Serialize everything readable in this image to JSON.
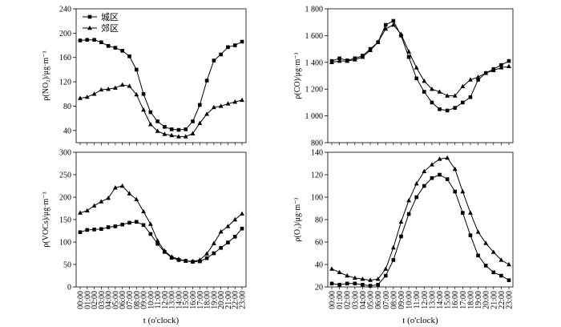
{
  "x_axis_label": "t (o'clock)",
  "chart_data": [
    {
      "type": "line",
      "id": "no2",
      "ylabel": "ρ(NO₂)/μg·m⁻³",
      "ylim": [
        20,
        240
      ],
      "yticks": [
        40,
        80,
        120,
        160,
        200,
        240
      ],
      "ytick_labels": [
        "40",
        "80",
        "120",
        "160",
        "200",
        "240"
      ],
      "x": [
        "00:00",
        "01:00",
        "02:00",
        "03:00",
        "04:00",
        "05:00",
        "06:00",
        "07:00",
        "08:00",
        "09:00",
        "10:00",
        "11:00",
        "12:00",
        "13:00",
        "14:00",
        "15:00",
        "16:00",
        "17:00",
        "18:00",
        "19:00",
        "20:00",
        "21:00",
        "22:00",
        "23:00"
      ],
      "legend_position": "top-left",
      "series": [
        {
          "name": "城区",
          "marker": "square",
          "values": [
            188,
            189,
            189,
            185,
            179,
            176,
            171,
            162,
            140,
            100,
            70,
            55,
            46,
            42,
            41,
            42,
            55,
            82,
            122,
            155,
            165,
            177,
            180,
            186
          ]
        },
        {
          "name": "郊区",
          "marker": "triangle",
          "values": [
            93,
            95,
            100,
            107,
            108,
            110,
            115,
            113,
            99,
            74,
            50,
            39,
            34,
            32,
            30,
            30,
            35,
            52,
            67,
            78,
            80,
            84,
            87,
            90
          ]
        }
      ]
    },
    {
      "type": "line",
      "id": "co",
      "ylabel": "ρ(CO)/μg·m⁻³",
      "ylim": [
        800,
        1800
      ],
      "yticks": [
        800,
        1000,
        1200,
        1400,
        1600,
        1800
      ],
      "ytick_labels": [
        "800",
        "1 000",
        "1 200",
        "1 400",
        "1 600",
        "1 800"
      ],
      "x": [
        "00:00",
        "01:00",
        "02:00",
        "03:00",
        "04:00",
        "05:00",
        "06:00",
        "07:00",
        "08:00",
        "09:00",
        "10:00",
        "11:00",
        "12:00",
        "13:00",
        "14:00",
        "15:00",
        "16:00",
        "17:00",
        "18:00",
        "19:00",
        "20:00",
        "21:00",
        "22:00",
        "23:00"
      ],
      "series": [
        {
          "name": "城区",
          "marker": "square",
          "values": [
            1410,
            1430,
            1415,
            1430,
            1450,
            1500,
            1550,
            1680,
            1710,
            1600,
            1440,
            1280,
            1180,
            1100,
            1050,
            1040,
            1060,
            1100,
            1140,
            1270,
            1320,
            1350,
            1380,
            1410
          ]
        },
        {
          "name": "郊区",
          "marker": "triangle",
          "values": [
            1400,
            1410,
            1410,
            1420,
            1440,
            1490,
            1550,
            1650,
            1680,
            1610,
            1480,
            1360,
            1260,
            1200,
            1180,
            1150,
            1150,
            1220,
            1270,
            1290,
            1320,
            1340,
            1360,
            1370
          ]
        }
      ]
    },
    {
      "type": "line",
      "id": "vocs",
      "ylabel": "ρ(VOCs)/μg·m⁻³",
      "ylim": [
        0,
        300
      ],
      "yticks": [
        0,
        50,
        100,
        150,
        200,
        250,
        300
      ],
      "ytick_labels": [
        "0",
        "50",
        "100",
        "150",
        "200",
        "250",
        "300"
      ],
      "x": [
        "00:00",
        "01:00",
        "02:00",
        "03:00",
        "04:00",
        "05:00",
        "06:00",
        "07:00",
        "08:00",
        "09:00",
        "10:00",
        "11:00",
        "12:00",
        "13:00",
        "14:00",
        "15:00",
        "16:00",
        "17:00",
        "18:00",
        "19:00",
        "20:00",
        "21:00",
        "22:00",
        "23:00"
      ],
      "series": [
        {
          "name": "城区",
          "marker": "square",
          "values": [
            122,
            127,
            128,
            129,
            133,
            135,
            139,
            143,
            145,
            138,
            118,
            96,
            78,
            65,
            60,
            58,
            56,
            57,
            64,
            75,
            87,
            99,
            112,
            130
          ]
        },
        {
          "name": "郊区",
          "marker": "triangle",
          "values": [
            165,
            170,
            181,
            190,
            198,
            221,
            225,
            208,
            195,
            168,
            140,
            103,
            80,
            67,
            62,
            58,
            57,
            60,
            74,
            97,
            123,
            135,
            150,
            163
          ]
        }
      ]
    },
    {
      "type": "line",
      "id": "o3",
      "ylabel": "ρ(O₃)/μg·m⁻³",
      "ylim": [
        20,
        140
      ],
      "yticks": [
        20,
        40,
        60,
        80,
        100,
        120,
        140
      ],
      "ytick_labels": [
        "20",
        "40",
        "60",
        "80",
        "100",
        "120",
        "140"
      ],
      "x": [
        "00:00",
        "01:00",
        "02:00",
        "03:00",
        "04:00",
        "05:00",
        "06:00",
        "07:00",
        "08:00",
        "09:00",
        "10:00",
        "11:00",
        "12:00",
        "13:00",
        "14:00",
        "15:00",
        "16:00",
        "17:00",
        "18:00",
        "19:00",
        "20:00",
        "21:00",
        "22:00",
        "23:00"
      ],
      "series": [
        {
          "name": "城区",
          "marker": "square",
          "values": [
            23,
            22,
            23,
            23,
            22,
            21,
            22,
            30,
            44,
            65,
            85,
            100,
            110,
            117,
            120,
            116,
            105,
            86,
            66,
            48,
            39,
            33,
            30,
            26
          ]
        },
        {
          "name": "郊区",
          "marker": "triangle",
          "values": [
            36,
            33,
            30,
            28,
            27,
            26,
            27,
            36,
            55,
            78,
            97,
            112,
            123,
            129,
            134,
            135,
            125,
            105,
            86,
            69,
            59,
            51,
            44,
            40
          ]
        }
      ]
    }
  ]
}
